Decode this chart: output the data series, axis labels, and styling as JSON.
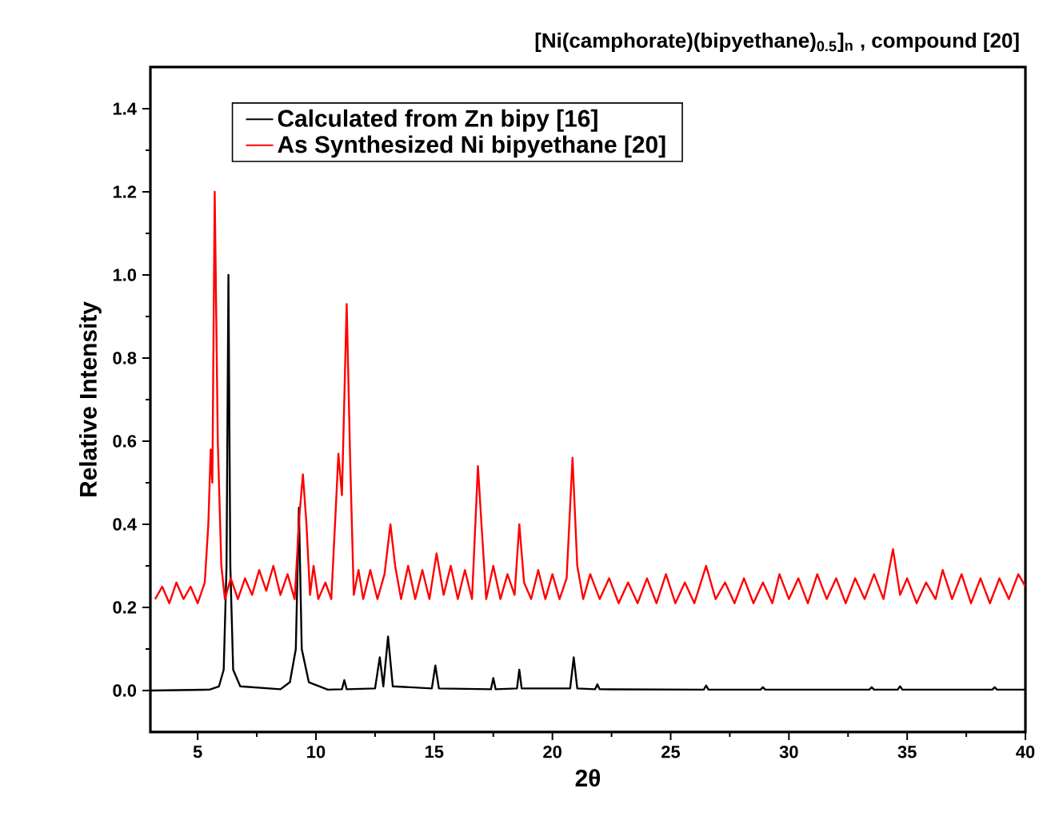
{
  "chart_data": {
    "type": "line",
    "title": "[Ni(camphorate)(bipyethane)$_{0.5}$]$_{n}$ , compound [20]",
    "xlabel": "2θ",
    "ylabel": "Relative Intensity",
    "xlim": [
      3,
      40
    ],
    "ylim": [
      -0.1,
      1.5
    ],
    "xticks": [
      5,
      10,
      15,
      20,
      25,
      30,
      35,
      40
    ],
    "yticks": [
      {
        "value": 0,
        "label": "0.0"
      },
      {
        "value": 0.2,
        "label": "0.2"
      },
      {
        "value": 0.4,
        "label": "0.4"
      },
      {
        "value": 0.6,
        "label": "0.6"
      },
      {
        "value": 0.8,
        "label": "0.8"
      },
      {
        "value": 1.0,
        "label": "1.0"
      },
      {
        "value": 1.2,
        "label": "1.2"
      },
      {
        "value": 1.4,
        "label": "1.4"
      }
    ],
    "grid": false,
    "legend": "top",
    "marker": "none",
    "line_style": "solid",
    "series": [
      {
        "name": "Calculated from Zn bipy [16]",
        "color": "#000000",
        "x": [
          3.0,
          5.5,
          5.9,
          6.1,
          6.22,
          6.3,
          6.38,
          6.5,
          6.8,
          8.5,
          8.9,
          9.15,
          9.28,
          9.4,
          9.7,
          10.5,
          11.1,
          11.2,
          11.3,
          12.5,
          12.7,
          12.85,
          13.05,
          13.25,
          14.9,
          15.05,
          15.2,
          17.4,
          17.5,
          17.6,
          18.5,
          18.6,
          18.7,
          20.75,
          20.9,
          21.05,
          21.8,
          21.9,
          22.0,
          26.4,
          26.5,
          26.6,
          28.8,
          28.9,
          29.0,
          33.4,
          33.5,
          33.6,
          34.6,
          34.7,
          34.8,
          38.6,
          38.7,
          38.8,
          40.0
        ],
        "values": [
          0,
          0.002,
          0.01,
          0.05,
          0.3,
          1.0,
          0.3,
          0.05,
          0.01,
          0.003,
          0.02,
          0.1,
          0.44,
          0.1,
          0.02,
          0.002,
          0.003,
          0.025,
          0.003,
          0.005,
          0.08,
          0.01,
          0.13,
          0.01,
          0.005,
          0.06,
          0.005,
          0.003,
          0.03,
          0.003,
          0.005,
          0.05,
          0.005,
          0.005,
          0.08,
          0.005,
          0.003,
          0.015,
          0.003,
          0.002,
          0.012,
          0.002,
          0.002,
          0.008,
          0.002,
          0.002,
          0.008,
          0.002,
          0.002,
          0.01,
          0.002,
          0.002,
          0.008,
          0.002,
          0.002
        ]
      },
      {
        "name": "As Synthesized Ni bipyethane [20]",
        "color": "#ff0000",
        "x": [
          3.2,
          3.5,
          3.8,
          4.1,
          4.4,
          4.7,
          5.0,
          5.3,
          5.45,
          5.55,
          5.62,
          5.72,
          5.85,
          6.0,
          6.15,
          6.4,
          6.7,
          7.0,
          7.3,
          7.6,
          7.9,
          8.2,
          8.5,
          8.8,
          9.1,
          9.3,
          9.45,
          9.6,
          9.75,
          9.9,
          10.1,
          10.4,
          10.65,
          10.85,
          10.95,
          11.1,
          11.3,
          11.45,
          11.6,
          11.8,
          12.0,
          12.3,
          12.6,
          12.9,
          13.15,
          13.35,
          13.6,
          13.9,
          14.2,
          14.5,
          14.8,
          15.1,
          15.4,
          15.7,
          16.0,
          16.3,
          16.6,
          16.85,
          17.0,
          17.2,
          17.5,
          17.8,
          18.1,
          18.4,
          18.6,
          18.8,
          19.1,
          19.4,
          19.7,
          20.0,
          20.3,
          20.6,
          20.85,
          21.05,
          21.3,
          21.6,
          22.0,
          22.4,
          22.8,
          23.2,
          23.6,
          24.0,
          24.4,
          24.8,
          25.2,
          25.6,
          26.0,
          26.5,
          26.9,
          27.3,
          27.7,
          28.1,
          28.5,
          28.9,
          29.3,
          29.6,
          30.0,
          30.4,
          30.8,
          31.2,
          31.6,
          32.0,
          32.4,
          32.8,
          33.2,
          33.6,
          34.0,
          34.4,
          34.7,
          35.0,
          35.4,
          35.8,
          36.2,
          36.5,
          36.9,
          37.3,
          37.7,
          38.1,
          38.5,
          38.9,
          39.3,
          39.7,
          40.0
        ],
        "values": [
          0.22,
          0.25,
          0.21,
          0.26,
          0.22,
          0.25,
          0.21,
          0.26,
          0.4,
          0.58,
          0.5,
          1.2,
          0.6,
          0.3,
          0.22,
          0.27,
          0.22,
          0.27,
          0.23,
          0.29,
          0.24,
          0.3,
          0.23,
          0.28,
          0.22,
          0.42,
          0.52,
          0.4,
          0.23,
          0.3,
          0.22,
          0.26,
          0.22,
          0.45,
          0.57,
          0.47,
          0.93,
          0.55,
          0.23,
          0.29,
          0.22,
          0.29,
          0.22,
          0.28,
          0.4,
          0.3,
          0.22,
          0.3,
          0.22,
          0.29,
          0.22,
          0.33,
          0.23,
          0.3,
          0.22,
          0.29,
          0.22,
          0.54,
          0.4,
          0.22,
          0.3,
          0.22,
          0.28,
          0.23,
          0.4,
          0.26,
          0.22,
          0.29,
          0.22,
          0.28,
          0.22,
          0.27,
          0.56,
          0.3,
          0.22,
          0.28,
          0.22,
          0.27,
          0.21,
          0.26,
          0.21,
          0.27,
          0.21,
          0.28,
          0.21,
          0.26,
          0.21,
          0.3,
          0.22,
          0.26,
          0.21,
          0.27,
          0.21,
          0.26,
          0.21,
          0.28,
          0.22,
          0.27,
          0.21,
          0.28,
          0.22,
          0.27,
          0.21,
          0.27,
          0.22,
          0.28,
          0.22,
          0.34,
          0.23,
          0.27,
          0.21,
          0.26,
          0.22,
          0.29,
          0.22,
          0.28,
          0.21,
          0.27,
          0.21,
          0.27,
          0.22,
          0.28,
          0.25
        ]
      }
    ]
  }
}
